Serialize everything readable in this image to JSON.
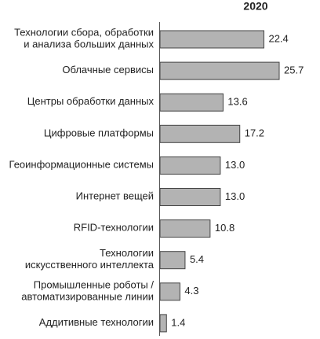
{
  "chart_data": {
    "type": "bar",
    "orientation": "horizontal",
    "title": "2020",
    "categories": [
      "Технологии сбора, обработки\nи анализа больших данных",
      "Облачные сервисы",
      "Центры обработки данных",
      "Цифровые платформы",
      "Геоинформационные системы",
      "Интернет вещей",
      "RFID-технологии",
      "Технологии\nискусственного интеллекта",
      "Промышленные роботы /\nавтоматизированные линии",
      "Аддитивные технологии"
    ],
    "values": [
      22.4,
      25.7,
      13.6,
      17.2,
      13.0,
      13.0,
      10.8,
      5.4,
      4.3,
      1.4
    ],
    "value_labels": [
      "22.4",
      "25.7",
      "13.6",
      "17.2",
      "13.0",
      "13.0",
      "10.8",
      "5.4",
      "4.3",
      "1.4"
    ],
    "color": "#b3b3b3"
  }
}
